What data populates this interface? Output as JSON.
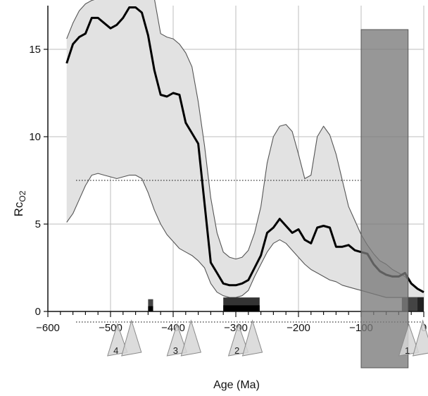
{
  "chart_data": {
    "type": "line",
    "title": "",
    "xlabel": "Age (Ma)",
    "ylabel": "Rco2",
    "ylabel_main": "Rc",
    "ylabel_sub": "O2",
    "xlim": [
      -600,
      0
    ],
    "ylim": [
      0,
      17.5
    ],
    "x_ticks": [
      -600,
      -500,
      -400,
      -300,
      -200,
      -100,
      0
    ],
    "x_tick_labels": [
      "−600",
      "−500",
      "−400",
      "−300",
      "−200",
      "−100",
      "0"
    ],
    "y_ticks": [
      0,
      5,
      10,
      15
    ],
    "y_tick_labels": [
      "0",
      "5",
      "10",
      "15"
    ],
    "grid": true,
    "series": [
      {
        "role": "best-estimate",
        "color": "#000000",
        "x": [
          -570,
          -560,
          -550,
          -540,
          -530,
          -520,
          -510,
          -500,
          -490,
          -480,
          -470,
          -460,
          -450,
          -440,
          -430,
          -420,
          -410,
          -400,
          -390,
          -380,
          -370,
          -360,
          -350,
          -340,
          -330,
          -320,
          -310,
          -300,
          -290,
          -280,
          -270,
          -260,
          -250,
          -240,
          -230,
          -220,
          -210,
          -200,
          -190,
          -180,
          -170,
          -160,
          -150,
          -140,
          -130,
          -120,
          -110,
          -100,
          -90,
          -80,
          -70,
          -60,
          -50,
          -40,
          -30,
          -20,
          -10,
          0
        ],
        "y": [
          14.2,
          15.3,
          15.7,
          15.9,
          16.8,
          16.8,
          16.5,
          16.2,
          16.4,
          16.8,
          17.4,
          17.4,
          17.1,
          15.8,
          13.8,
          12.4,
          12.3,
          12.5,
          12.4,
          10.8,
          10.2,
          9.6,
          6.2,
          2.8,
          2.2,
          1.6,
          1.5,
          1.5,
          1.6,
          1.8,
          2.5,
          3.2,
          4.5,
          4.8,
          5.3,
          4.9,
          4.5,
          4.7,
          4.1,
          3.9,
          4.8,
          4.9,
          4.8,
          3.7,
          3.7,
          3.8,
          3.5,
          3.4,
          3.3,
          2.7,
          2.3,
          2.1,
          2.0,
          2.0,
          2.2,
          1.6,
          1.3,
          1.1
        ]
      },
      {
        "role": "upper-bound",
        "color": "#555555",
        "x": [
          -570,
          -560,
          -550,
          -540,
          -530,
          -520,
          -510,
          -500,
          -490,
          -480,
          -470,
          -460,
          -450,
          -440,
          -430,
          -420,
          -410,
          -400,
          -390,
          -380,
          -370,
          -360,
          -350,
          -340,
          -330,
          -320,
          -310,
          -300,
          -290,
          -280,
          -270,
          -260,
          -250,
          -240,
          -230,
          -220,
          -210,
          -200,
          -190,
          -180,
          -170,
          -160,
          -150,
          -140,
          -130,
          -120,
          -110,
          -100,
          -90,
          -80,
          -70,
          -60,
          -50,
          -40,
          -30,
          -20,
          -10,
          0
        ],
        "y": [
          15.6,
          16.5,
          17.2,
          17.6,
          17.8,
          17.9,
          17.9,
          17.9,
          17.9,
          17.9,
          17.9,
          17.9,
          17.9,
          17.9,
          17.9,
          15.9,
          15.7,
          15.6,
          15.3,
          14.8,
          14.0,
          12.0,
          9.5,
          6.5,
          4.5,
          3.4,
          3.1,
          3.0,
          3.1,
          3.5,
          4.5,
          6.0,
          8.5,
          10.0,
          10.6,
          10.7,
          10.3,
          9.0,
          7.6,
          7.8,
          10.0,
          10.6,
          10.1,
          9.0,
          7.5,
          6.0,
          5.2,
          4.4,
          3.8,
          3.3,
          2.9,
          2.7,
          2.4,
          2.2,
          2.0,
          1.6,
          1.3,
          1.1
        ]
      },
      {
        "role": "lower-bound",
        "color": "#555555",
        "x": [
          -570,
          -560,
          -550,
          -540,
          -530,
          -520,
          -510,
          -500,
          -490,
          -480,
          -470,
          -460,
          -450,
          -440,
          -430,
          -420,
          -410,
          -400,
          -390,
          -380,
          -370,
          -360,
          -350,
          -340,
          -330,
          -320,
          -310,
          -300,
          -290,
          -280,
          -270,
          -260,
          -250,
          -240,
          -230,
          -220,
          -210,
          -200,
          -190,
          -180,
          -170,
          -160,
          -150,
          -140,
          -130,
          -120,
          -110,
          -100,
          -90,
          -80,
          -70,
          -60,
          -50,
          -40,
          -30,
          -20,
          -10,
          0
        ],
        "y": [
          5.1,
          5.6,
          6.4,
          7.2,
          7.8,
          7.9,
          7.8,
          7.7,
          7.6,
          7.7,
          7.8,
          7.8,
          7.6,
          6.8,
          5.8,
          5.0,
          4.4,
          4.0,
          3.6,
          3.4,
          3.2,
          2.9,
          2.5,
          1.6,
          1.1,
          0.9,
          0.8,
          0.8,
          0.9,
          1.2,
          2.0,
          2.7,
          3.4,
          3.9,
          4.1,
          3.9,
          3.5,
          3.1,
          2.7,
          2.4,
          2.2,
          2.0,
          1.8,
          1.7,
          1.5,
          1.4,
          1.3,
          1.2,
          1.1,
          1.0,
          0.9,
          0.8,
          0.8,
          0.8,
          0.8,
          0.8,
          0.8,
          0.8
        ]
      }
    ],
    "reference_line": {
      "y": 7.5,
      "x_start": -555,
      "x_end": -100,
      "style": "dotted"
    },
    "shaded_period": {
      "x_start": -100,
      "x_end": -25,
      "color": "#7a7a7a"
    },
    "timeline_bars": [
      {
        "x_start": -440,
        "x_end": -432,
        "height": 0.7,
        "color": "#444444"
      },
      {
        "x_start": -440,
        "x_end": -432,
        "height": 0.3,
        "color": "#000000"
      },
      {
        "x_start": -320,
        "x_end": -262,
        "height": 0.8,
        "color": "#333333"
      },
      {
        "x_start": -320,
        "x_end": -262,
        "height": 0.35,
        "color": "#000000"
      },
      {
        "x_start": -35,
        "x_end": 0,
        "height": 0.8,
        "color": "#444444"
      },
      {
        "x_start": -10,
        "x_end": 0,
        "height": 0.8,
        "color": "#222222"
      }
    ],
    "glaciations": [
      {
        "label": "4",
        "x": -480
      },
      {
        "label": "3",
        "x": -385
      },
      {
        "label": "2",
        "x": -287
      },
      {
        "label": "1",
        "x": -15
      }
    ],
    "fill_color": "#e2e2e2"
  }
}
